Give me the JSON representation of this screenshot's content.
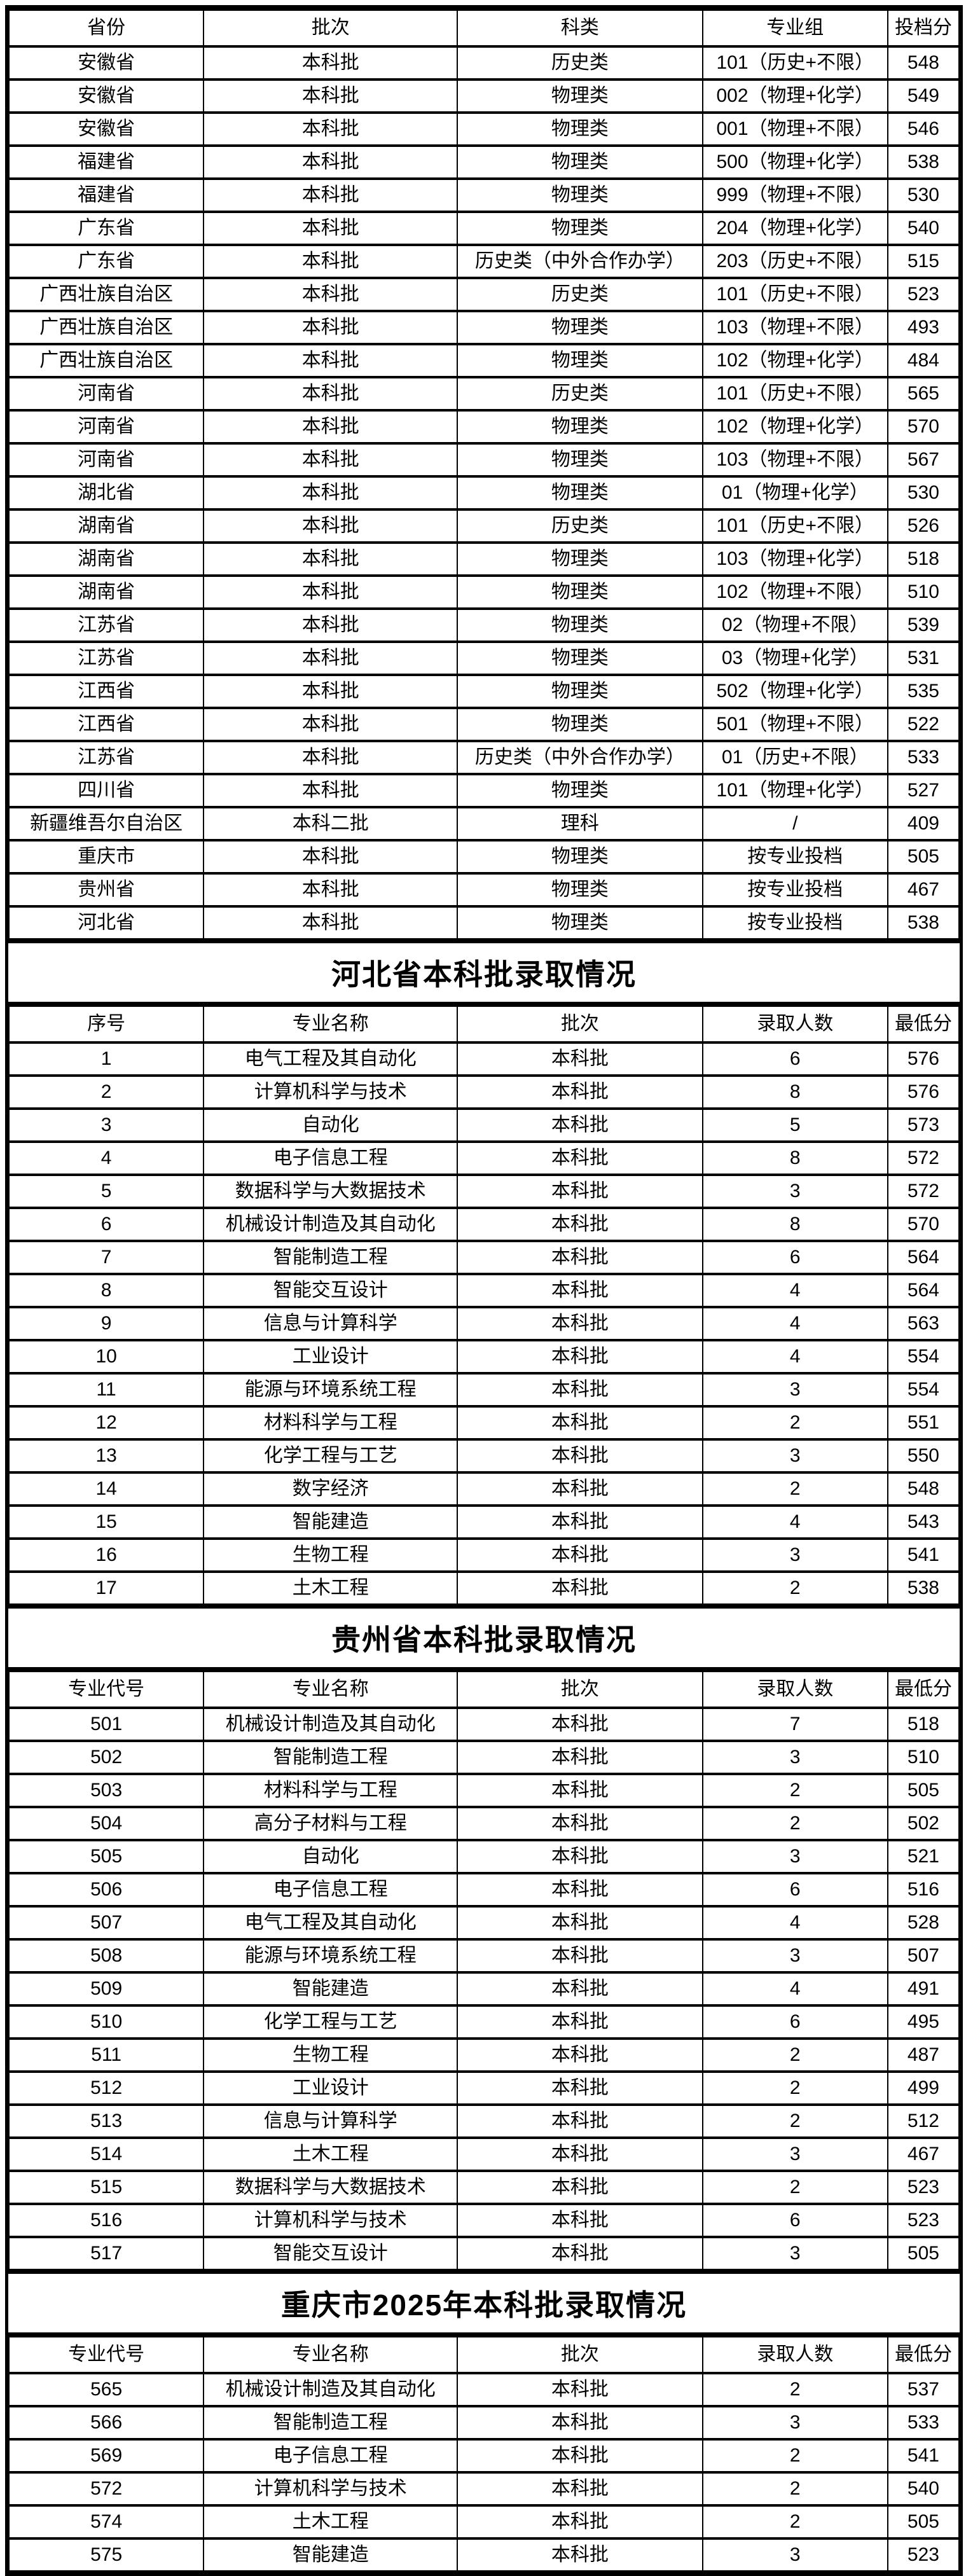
{
  "provincial_table": {
    "headers": [
      "省份",
      "批次",
      "科类",
      "专业组",
      "投档分"
    ],
    "rows": [
      [
        "安徽省",
        "本科批",
        "历史类",
        "101（历史+不限）",
        "548"
      ],
      [
        "安徽省",
        "本科批",
        "物理类",
        "002（物理+化学）",
        "549"
      ],
      [
        "安徽省",
        "本科批",
        "物理类",
        "001（物理+不限）",
        "546"
      ],
      [
        "福建省",
        "本科批",
        "物理类",
        "500（物理+化学）",
        "538"
      ],
      [
        "福建省",
        "本科批",
        "物理类",
        "999（物理+不限）",
        "530"
      ],
      [
        "广东省",
        "本科批",
        "物理类",
        "204（物理+化学）",
        "540"
      ],
      [
        "广东省",
        "本科批",
        "历史类（中外合作办学）",
        "203（历史+不限）",
        "515"
      ],
      [
        "广西壮族自治区",
        "本科批",
        "历史类",
        "101（历史+不限）",
        "523"
      ],
      [
        "广西壮族自治区",
        "本科批",
        "物理类",
        "103（物理+不限）",
        "493"
      ],
      [
        "广西壮族自治区",
        "本科批",
        "物理类",
        "102（物理+化学）",
        "484"
      ],
      [
        "河南省",
        "本科批",
        "历史类",
        "101（历史+不限）",
        "565"
      ],
      [
        "河南省",
        "本科批",
        "物理类",
        "102（物理+化学）",
        "570"
      ],
      [
        "河南省",
        "本科批",
        "物理类",
        "103（物理+不限）",
        "567"
      ],
      [
        "湖北省",
        "本科批",
        "物理类",
        "01（物理+化学）",
        "530"
      ],
      [
        "湖南省",
        "本科批",
        "历史类",
        "101（历史+不限）",
        "526"
      ],
      [
        "湖南省",
        "本科批",
        "物理类",
        "103（物理+化学）",
        "518"
      ],
      [
        "湖南省",
        "本科批",
        "物理类",
        "102（物理+不限）",
        "510"
      ],
      [
        "江苏省",
        "本科批",
        "物理类",
        "02（物理+不限）",
        "539"
      ],
      [
        "江苏省",
        "本科批",
        "物理类",
        "03（物理+化学）",
        "531"
      ],
      [
        "江西省",
        "本科批",
        "物理类",
        "502（物理+化学）",
        "535"
      ],
      [
        "江西省",
        "本科批",
        "物理类",
        "501（物理+不限）",
        "522"
      ],
      [
        "江苏省",
        "本科批",
        "历史类（中外合作办学）",
        "01（历史+不限）",
        "533"
      ],
      [
        "四川省",
        "本科批",
        "物理类",
        "101（物理+化学）",
        "527"
      ],
      [
        "新疆维吾尔自治区",
        "本科二批",
        "理科",
        "/",
        "409"
      ],
      [
        "重庆市",
        "本科批",
        "物理类",
        "按专业投档",
        "505"
      ],
      [
        "贵州省",
        "本科批",
        "物理类",
        "按专业投档",
        "467"
      ],
      [
        "河北省",
        "本科批",
        "物理类",
        "按专业投档",
        "538"
      ]
    ]
  },
  "sections": [
    {
      "title": "河北省本科批录取情况",
      "headers": [
        "序号",
        "专业名称",
        "批次",
        "录取人数",
        "最低分"
      ],
      "rows": [
        [
          "1",
          "电气工程及其自动化",
          "本科批",
          "6",
          "576"
        ],
        [
          "2",
          "计算机科学与技术",
          "本科批",
          "8",
          "576"
        ],
        [
          "3",
          "自动化",
          "本科批",
          "5",
          "573"
        ],
        [
          "4",
          "电子信息工程",
          "本科批",
          "8",
          "572"
        ],
        [
          "5",
          "数据科学与大数据技术",
          "本科批",
          "3",
          "572"
        ],
        [
          "6",
          "机械设计制造及其自动化",
          "本科批",
          "8",
          "570"
        ],
        [
          "7",
          "智能制造工程",
          "本科批",
          "6",
          "564"
        ],
        [
          "8",
          "智能交互设计",
          "本科批",
          "4",
          "564"
        ],
        [
          "9",
          "信息与计算科学",
          "本科批",
          "4",
          "563"
        ],
        [
          "10",
          "工业设计",
          "本科批",
          "4",
          "554"
        ],
        [
          "11",
          "能源与环境系统工程",
          "本科批",
          "3",
          "554"
        ],
        [
          "12",
          "材料科学与工程",
          "本科批",
          "2",
          "551"
        ],
        [
          "13",
          "化学工程与工艺",
          "本科批",
          "3",
          "550"
        ],
        [
          "14",
          "数字经济",
          "本科批",
          "2",
          "548"
        ],
        [
          "15",
          "智能建造",
          "本科批",
          "4",
          "543"
        ],
        [
          "16",
          "生物工程",
          "本科批",
          "3",
          "541"
        ],
        [
          "17",
          "土木工程",
          "本科批",
          "2",
          "538"
        ]
      ]
    },
    {
      "title": "贵州省本科批录取情况",
      "headers": [
        "专业代号",
        "专业名称",
        "批次",
        "录取人数",
        "最低分"
      ],
      "rows": [
        [
          "501",
          "机械设计制造及其自动化",
          "本科批",
          "7",
          "518"
        ],
        [
          "502",
          "智能制造工程",
          "本科批",
          "3",
          "510"
        ],
        [
          "503",
          "材料科学与工程",
          "本科批",
          "2",
          "505"
        ],
        [
          "504",
          "高分子材料与工程",
          "本科批",
          "2",
          "502"
        ],
        [
          "505",
          "自动化",
          "本科批",
          "3",
          "521"
        ],
        [
          "506",
          "电子信息工程",
          "本科批",
          "6",
          "516"
        ],
        [
          "507",
          "电气工程及其自动化",
          "本科批",
          "4",
          "528"
        ],
        [
          "508",
          "能源与环境系统工程",
          "本科批",
          "3",
          "507"
        ],
        [
          "509",
          "智能建造",
          "本科批",
          "4",
          "491"
        ],
        [
          "510",
          "化学工程与工艺",
          "本科批",
          "6",
          "495"
        ],
        [
          "511",
          "生物工程",
          "本科批",
          "2",
          "487"
        ],
        [
          "512",
          "工业设计",
          "本科批",
          "2",
          "499"
        ],
        [
          "513",
          "信息与计算科学",
          "本科批",
          "2",
          "512"
        ],
        [
          "514",
          "土木工程",
          "本科批",
          "3",
          "467"
        ],
        [
          "515",
          "数据科学与大数据技术",
          "本科批",
          "2",
          "523"
        ],
        [
          "516",
          "计算机科学与技术",
          "本科批",
          "6",
          "523"
        ],
        [
          "517",
          "智能交互设计",
          "本科批",
          "3",
          "505"
        ]
      ]
    },
    {
      "title": "重庆市2025年本科批录取情况",
      "headers": [
        "专业代号",
        "专业名称",
        "批次",
        "录取人数",
        "最低分"
      ],
      "rows": [
        [
          "565",
          "机械设计制造及其自动化",
          "本科批",
          "2",
          "537"
        ],
        [
          "566",
          "智能制造工程",
          "本科批",
          "3",
          "533"
        ],
        [
          "569",
          "电子信息工程",
          "本科批",
          "2",
          "541"
        ],
        [
          "572",
          "计算机科学与技术",
          "本科批",
          "2",
          "540"
        ],
        [
          "574",
          "土木工程",
          "本科批",
          "2",
          "505"
        ],
        [
          "575",
          "智能建造",
          "本科批",
          "3",
          "523"
        ]
      ]
    }
  ]
}
